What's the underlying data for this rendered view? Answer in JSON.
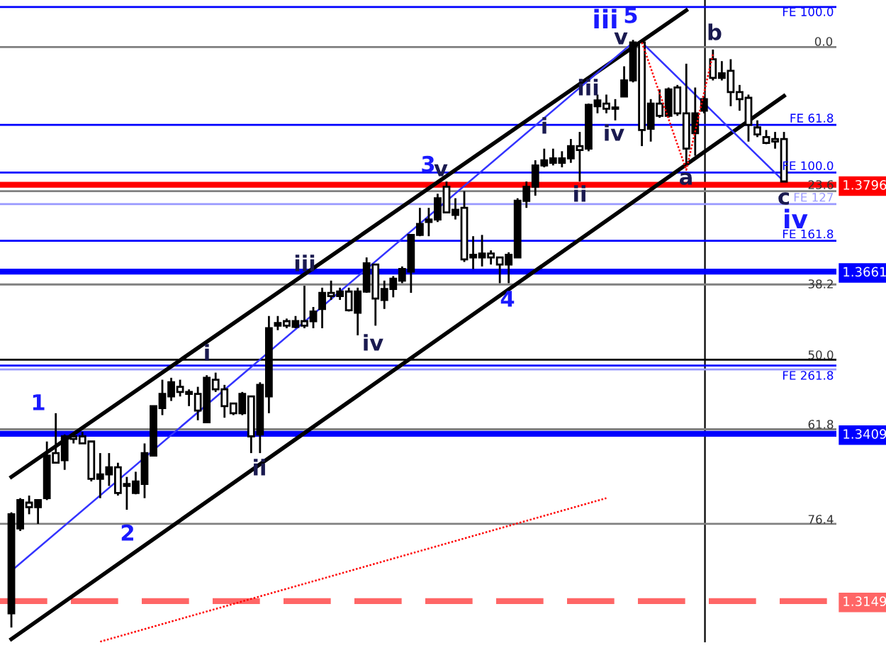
{
  "chart_data": {
    "type": "candlestick",
    "color": "#000000",
    "tick_labels": "y",
    "ylim": [
      1.3085,
      1.4083
    ],
    "yticks": [
      1.3149,
      1.3409,
      1.3661,
      1.3796
    ],
    "categories": [
      null,
      null,
      null,
      null,
      null,
      null,
      null,
      null,
      null,
      null,
      null,
      null,
      null,
      null,
      null,
      null,
      null,
      null,
      null,
      null,
      null,
      null,
      null,
      null,
      null,
      null,
      null,
      null,
      null,
      null,
      null,
      null,
      null,
      null,
      null,
      null,
      null,
      null,
      null,
      null,
      null,
      null,
      null,
      null,
      null,
      null,
      null,
      null,
      null,
      null,
      null,
      null,
      null,
      null,
      null,
      null,
      null,
      null,
      null,
      null,
      null,
      null,
      null,
      null,
      null,
      null,
      null,
      null,
      null,
      null,
      null,
      null,
      null,
      null,
      null,
      null,
      null,
      null,
      null,
      null,
      null,
      null,
      null,
      null,
      null,
      null,
      null,
      null
    ],
    "ohlc": [
      [
        1.313,
        1.3287,
        1.3108,
        1.3284
      ],
      [
        1.3262,
        1.3309,
        1.3258,
        1.3306
      ],
      [
        1.3302,
        1.3313,
        1.3284,
        1.3295
      ],
      [
        1.3295,
        1.3306,
        1.3269,
        1.3306
      ],
      [
        1.3309,
        1.3397,
        1.3306,
        1.3375
      ],
      [
        1.3379,
        1.3441,
        1.3364,
        1.3364
      ],
      [
        1.3368,
        1.3408,
        1.3353,
        1.3405
      ],
      [
        1.3405,
        1.341,
        1.3394,
        1.3401
      ],
      [
        1.3405,
        1.3412,
        1.3394,
        1.3394
      ],
      [
        1.3397,
        1.3397,
        1.3335,
        1.3339
      ],
      [
        1.3339,
        1.3379,
        1.3309,
        1.3346
      ],
      [
        1.3346,
        1.3379,
        1.3328,
        1.3357
      ],
      [
        1.3357,
        1.3364,
        1.3313,
        1.3317
      ],
      [
        1.3331,
        1.3342,
        1.3291,
        1.3328
      ],
      [
        1.3317,
        1.335,
        1.3315,
        1.3335
      ],
      [
        1.3331,
        1.3394,
        1.3309,
        1.3379
      ],
      [
        1.3375,
        1.3452,
        1.3375,
        1.3452
      ],
      [
        1.3449,
        1.3493,
        1.3438,
        1.3471
      ],
      [
        1.3467,
        1.3496,
        1.346,
        1.3489
      ],
      [
        1.3482,
        1.3493,
        1.3467,
        1.3474
      ],
      [
        1.3474,
        1.3478,
        1.3452,
        1.3471
      ],
      [
        1.3471,
        1.3482,
        1.343,
        1.3445
      ],
      [
        1.3427,
        1.35,
        1.3427,
        1.3496
      ],
      [
        1.3493,
        1.3504,
        1.3474,
        1.3478
      ],
      [
        1.3478,
        1.3485,
        1.3434,
        1.3452
      ],
      [
        1.3456,
        1.3456,
        1.3438,
        1.3441
      ],
      [
        1.3441,
        1.3474,
        1.3438,
        1.3471
      ],
      [
        1.3467,
        1.3467,
        1.3379,
        1.3405
      ],
      [
        1.3408,
        1.3489,
        1.3379,
        1.3485
      ],
      [
        1.3467,
        1.3592,
        1.3441,
        1.3573
      ],
      [
        1.3577,
        1.3592,
        1.357,
        1.3581
      ],
      [
        1.3584,
        1.3588,
        1.3573,
        1.3577
      ],
      [
        1.3575,
        1.3592,
        1.3573,
        1.3584
      ],
      [
        1.3584,
        1.3639,
        1.3573,
        1.3577
      ],
      [
        1.3584,
        1.3606,
        1.3573,
        1.3599
      ],
      [
        1.3603,
        1.3636,
        1.3573,
        1.3628
      ],
      [
        1.3628,
        1.3647,
        1.3617,
        1.3623
      ],
      [
        1.3623,
        1.3636,
        1.3617,
        1.363
      ],
      [
        1.363,
        1.3636,
        1.3599,
        1.3601
      ],
      [
        1.3597,
        1.3636,
        1.3562,
        1.363
      ],
      [
        1.363,
        1.3683,
        1.3628,
        1.3674
      ],
      [
        1.3672,
        1.3672,
        1.3577,
        1.3619
      ],
      [
        1.3617,
        1.3647,
        1.3603,
        1.3634
      ],
      [
        1.3634,
        1.3654,
        1.3621,
        1.365
      ],
      [
        1.3647,
        1.3669,
        1.3643,
        1.3665
      ],
      [
        1.3661,
        1.3718,
        1.3628,
        1.3718
      ],
      [
        1.3718,
        1.376,
        1.3716,
        1.3735
      ],
      [
        1.3738,
        1.376,
        1.3716,
        1.3742
      ],
      [
        1.3742,
        1.3782,
        1.3738,
        1.3775
      ],
      [
        1.3793,
        1.3801,
        1.3753,
        1.3753
      ],
      [
        1.3749,
        1.3775,
        1.3742,
        1.3757
      ],
      [
        1.376,
        1.3786,
        1.3676,
        1.368
      ],
      [
        1.3683,
        1.3716,
        1.3665,
        1.3687
      ],
      [
        1.3683,
        1.3718,
        1.3669,
        1.3689
      ],
      [
        1.3689,
        1.3694,
        1.3672,
        1.3683
      ],
      [
        1.3683,
        1.3683,
        1.3643,
        1.3672
      ],
      [
        1.3672,
        1.3691,
        1.3643,
        1.3687
      ],
      [
        1.3683,
        1.3775,
        1.3683,
        1.3771
      ],
      [
        1.3771,
        1.3801,
        1.376,
        1.3793
      ],
      [
        1.3793,
        1.3834,
        1.3779,
        1.3826
      ],
      [
        1.3826,
        1.3852,
        1.3823,
        1.3834
      ],
      [
        1.383,
        1.3852,
        1.3826,
        1.3837
      ],
      [
        1.383,
        1.3848,
        1.3823,
        1.3837
      ],
      [
        1.3837,
        1.3867,
        1.383,
        1.3856
      ],
      [
        1.3856,
        1.3878,
        1.3801,
        1.385
      ],
      [
        1.3852,
        1.3922,
        1.3848,
        1.392
      ],
      [
        1.3918,
        1.3936,
        1.3907,
        1.3927
      ],
      [
        1.3922,
        1.3936,
        1.3907,
        1.3914
      ],
      [
        1.3914,
        1.3929,
        1.3896,
        1.3916
      ],
      [
        1.3933,
        1.398,
        1.3933,
        1.3958
      ],
      [
        1.3958,
        1.4021,
        1.3955,
        1.4017
      ],
      [
        1.4017,
        1.4021,
        1.3856,
        1.3881
      ],
      [
        1.3883,
        1.3929,
        1.3863,
        1.3922
      ],
      [
        1.3922,
        1.3944,
        1.39,
        1.3903
      ],
      [
        1.3903,
        1.3947,
        1.39,
        1.3944
      ],
      [
        1.3947,
        1.3951,
        1.3903,
        1.3907
      ],
      [
        1.3907,
        1.3984,
        1.383,
        1.3852
      ],
      [
        1.3876,
        1.3947,
        1.3841,
        1.3907
      ],
      [
        1.3911,
        1.3933,
        1.3907,
        1.3929
      ],
      [
        1.3991,
        1.4006,
        1.3958,
        1.3962
      ],
      [
        1.3962,
        1.3988,
        1.3958,
        1.3969
      ],
      [
        1.3973,
        1.3991,
        1.3918,
        1.394
      ],
      [
        1.394,
        1.3951,
        1.3911,
        1.3929
      ],
      [
        1.3931,
        1.3936,
        1.3863,
        1.3889
      ],
      [
        1.3885,
        1.3896,
        1.387,
        1.3874
      ],
      [
        1.387,
        1.3881,
        1.3859,
        1.3861
      ],
      [
        1.3867,
        1.3878,
        1.3852,
        1.3863
      ],
      [
        1.3867,
        1.3878,
        1.3801,
        1.3801
      ]
    ],
    "series": [
      {
        "type": "line",
        "color": "#000000",
        "line_style": "solid",
        "values": [
          1.3342,
          null,
          null,
          null,
          null,
          null,
          null,
          null,
          null,
          null,
          null,
          null,
          null,
          null,
          null,
          null,
          null,
          null,
          null,
          null,
          null,
          null,
          null,
          null,
          null,
          null,
          null,
          null,
          null,
          null,
          null,
          null,
          null,
          null,
          null,
          null,
          null,
          null,
          null,
          null,
          null,
          null,
          null,
          null,
          null,
          null,
          null,
          null,
          null,
          null,
          null,
          null,
          null,
          null,
          null,
          null,
          null,
          null,
          null,
          null,
          null,
          null,
          null,
          null,
          null,
          null,
          null,
          null,
          null,
          null,
          null,
          null,
          null,
          null,
          null,
          null,
          1.4067,
          null,
          null,
          null,
          null,
          null,
          null,
          null,
          null,
          null,
          null,
          null
        ]
      },
      {
        "type": "line",
        "color": "#000000",
        "line_style": "solid",
        "values": [
          1.309,
          null,
          null,
          null,
          null,
          null,
          null,
          null,
          null,
          null,
          null,
          null,
          null,
          null,
          null,
          null,
          null,
          null,
          null,
          null,
          null,
          null,
          null,
          null,
          null,
          null,
          null,
          null,
          null,
          null,
          null,
          null,
          null,
          null,
          null,
          null,
          null,
          null,
          null,
          null,
          null,
          null,
          null,
          null,
          null,
          null,
          null,
          null,
          null,
          null,
          null,
          null,
          null,
          null,
          null,
          null,
          null,
          null,
          null,
          null,
          null,
          null,
          null,
          null,
          null,
          null,
          null,
          null,
          null,
          null,
          null,
          null,
          null,
          null,
          null,
          null,
          null,
          null,
          null,
          null,
          null,
          null,
          null,
          null,
          null,
          null,
          null,
          1.3934
        ]
      },
      {
        "type": "line",
        "color": "#3333ff",
        "line_style": "solid",
        "values": [
          1.3196,
          null,
          null,
          null,
          null,
          null,
          null,
          null,
          null,
          null,
          null,
          null,
          null,
          null,
          null,
          null,
          null,
          null,
          null,
          null,
          null,
          null,
          null,
          null,
          null,
          null,
          null,
          null,
          null,
          null,
          null,
          null,
          null,
          null,
          null,
          null,
          null,
          null,
          null,
          null,
          null,
          null,
          null,
          null,
          null,
          null,
          null,
          null,
          null,
          null,
          null,
          null,
          null,
          null,
          null,
          null,
          null,
          null,
          null,
          null,
          null,
          null,
          null,
          null,
          null,
          null,
          null,
          null,
          null,
          null,
          1.4017,
          null,
          null,
          null,
          null,
          null,
          null,
          null,
          null,
          null,
          null,
          null,
          null,
          null,
          null,
          null,
          null,
          null
        ]
      },
      {
        "type": "line",
        "color": "#3333ff",
        "line_style": "solid",
        "values": [
          null,
          null,
          null,
          null,
          null,
          null,
          null,
          null,
          null,
          null,
          null,
          null,
          null,
          null,
          null,
          null,
          null,
          null,
          null,
          null,
          null,
          null,
          null,
          null,
          null,
          null,
          null,
          null,
          null,
          null,
          null,
          null,
          null,
          null,
          null,
          null,
          null,
          null,
          null,
          null,
          null,
          null,
          null,
          null,
          null,
          null,
          null,
          null,
          null,
          null,
          null,
          null,
          null,
          null,
          null,
          null,
          null,
          null,
          null,
          null,
          null,
          null,
          null,
          null,
          null,
          null,
          null,
          null,
          null,
          null,
          null,
          1.4017,
          null,
          null,
          null,
          null,
          null,
          null,
          null,
          null,
          null,
          null,
          null,
          null,
          null,
          null,
          null,
          1.3801
        ]
      },
      {
        "type": "line",
        "color": "#ff0000",
        "line_style": "dotted",
        "values": [
          null,
          null,
          null,
          null,
          null,
          null,
          null,
          null,
          null,
          null,
          null,
          null,
          null,
          null,
          null,
          null,
          null,
          null,
          null,
          null,
          null,
          null,
          null,
          null,
          null,
          null,
          null,
          null,
          null,
          null,
          null,
          null,
          null,
          null,
          null,
          null,
          null,
          null,
          null,
          null,
          null,
          null,
          null,
          null,
          null,
          null,
          null,
          null,
          null,
          null,
          null,
          null,
          null,
          null,
          null,
          null,
          null,
          null,
          null,
          null,
          null,
          null,
          null,
          null,
          null,
          null,
          null,
          null,
          null,
          null,
          null,
          1.4017,
          null,
          null,
          null,
          null,
          1.3819,
          null,
          null,
          1.3999,
          null,
          null,
          null,
          null,
          null,
          null,
          null,
          null
        ]
      },
      {
        "type": "line",
        "color": "#ff0000",
        "line_style": "dotted",
        "values": [
          null,
          null,
          null,
          null,
          null,
          null,
          null,
          null,
          null,
          null,
          1.3086,
          null,
          null,
          null,
          null,
          null,
          null,
          null,
          null,
          null,
          null,
          null,
          null,
          null,
          null,
          null,
          null,
          null,
          null,
          null,
          null,
          null,
          null,
          null,
          null,
          null,
          null,
          null,
          null,
          null,
          null,
          null,
          null,
          null,
          null,
          null,
          null,
          null,
          null,
          null,
          null,
          null,
          null,
          null,
          null,
          null,
          null,
          null,
          null,
          null,
          null,
          null,
          null,
          null,
          null,
          null,
          null,
          1.3309,
          null,
          null,
          null,
          null,
          null,
          null,
          null,
          null,
          null,
          null,
          null,
          null,
          null,
          null,
          null,
          null,
          null,
          null,
          null,
          null
        ]
      }
    ],
    "ref_lines": [
      {
        "axis": "y",
        "value": 1.4072,
        "label": "FE 100.0",
        "color": "#0000ff",
        "line_style": "solid"
      },
      {
        "axis": "y",
        "value": 1.401,
        "label": null,
        "color": "#808080",
        "line_style": "solid"
      },
      {
        "axis": "y",
        "value": 1.3889,
        "label": "FE 61.8",
        "color": "#0000ff",
        "line_style": "solid"
      },
      {
        "axis": "y",
        "value": 1.3815,
        "label": "FE 100.0",
        "color": "#0000ff",
        "line_style": "solid"
      },
      {
        "axis": "y",
        "value": 1.3796,
        "label": null,
        "color": "#ff0000",
        "line_style": "solid"
      },
      {
        "axis": "y",
        "value": 1.3786,
        "label": null,
        "color": "#808080",
        "line_style": "solid"
      },
      {
        "axis": "y",
        "value": 1.3766,
        "label": "FE 127",
        "color": "#9999ff",
        "line_style": "solid"
      },
      {
        "axis": "y",
        "value": 1.3709,
        "label": "FE 161.8",
        "color": "#0000ff",
        "line_style": "solid"
      },
      {
        "axis": "y",
        "value": 1.3661,
        "label": null,
        "color": "#0000ff",
        "line_style": "solid"
      },
      {
        "axis": "y",
        "value": 1.3641,
        "label": null,
        "color": "#808080",
        "line_style": "solid"
      },
      {
        "axis": "y",
        "value": 1.3524,
        "label": null,
        "color": "#000000",
        "line_style": "solid"
      },
      {
        "axis": "y",
        "value": 1.3515,
        "label": "FE 261.8",
        "color": "#0000ff",
        "line_style": "solid"
      },
      {
        "axis": "y",
        "value": 1.3509,
        "label": null,
        "color": "#9999ff",
        "line_style": "solid"
      },
      {
        "axis": "y",
        "value": 1.3416,
        "label": null,
        "color": "#808080",
        "line_style": "solid"
      },
      {
        "axis": "y",
        "value": 1.3409,
        "label": null,
        "color": "#0000ff",
        "line_style": "solid"
      },
      {
        "axis": "y",
        "value": 1.3269,
        "label": null,
        "color": "#808080",
        "line_style": "solid"
      },
      {
        "axis": "y",
        "value": 1.3149,
        "label": null,
        "color": "#ff6666",
        "line_style": "dashed"
      }
    ],
    "annotations": [
      "1",
      "2",
      "i",
      "ii",
      "iii",
      "iv",
      "3",
      "v",
      "4",
      "i",
      "ii",
      "iii",
      "iv",
      "iii",
      "5",
      "v",
      "a",
      "b",
      "c",
      "iv",
      "0.0",
      "23.6",
      "38.2",
      "50.0",
      "61.8",
      "76.4"
    ]
  }
}
